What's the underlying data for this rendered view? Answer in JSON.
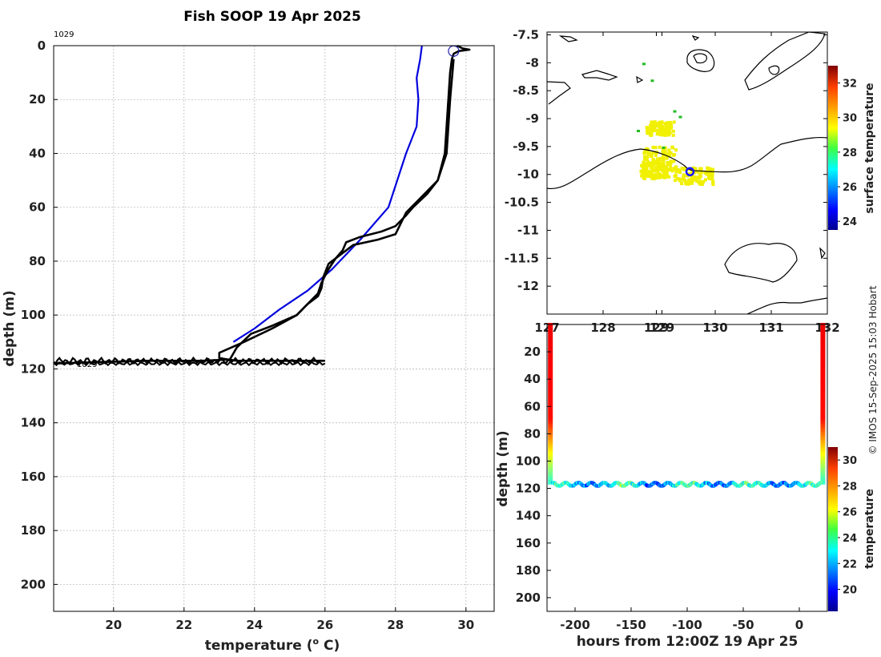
{
  "figure_title": "Fish SOOP 19 Apr 2025",
  "credit": "© IMOS 15-Sep-2025 15:03 Hobart",
  "colors": {
    "profile": "#000000",
    "climatology": "#0000dd",
    "marker": "#2222aa",
    "coast": "#000000",
    "sst_patch": "#f0f000",
    "sst_green": "#22bb22"
  },
  "chart_data": [
    {
      "id": "profile",
      "type": "line",
      "title": "Fish SOOP 19 Apr 2025",
      "xlabel": "temperature (",
      "xlabel_sup": "o",
      "xlabel_suffix": " C)",
      "ylabel": "depth (m)",
      "xlim": [
        18.3,
        30.8
      ],
      "ylim": [
        210,
        0
      ],
      "xticks": [
        "20",
        "22",
        "24",
        "26",
        "28",
        "30"
      ],
      "yticks": [
        "0",
        "20",
        "40",
        "60",
        "80",
        "100",
        "120",
        "140",
        "160",
        "180",
        "200"
      ],
      "grid": true,
      "annotations": [
        "1029",
        "1029"
      ],
      "series": [
        {
          "name": "climatology",
          "color": "#0000dd",
          "x": [
            28.75,
            28.7,
            28.6,
            28.65,
            28.6,
            28.3,
            27.8,
            27.0,
            26.2,
            25.5,
            24.7,
            24.0,
            23.4
          ],
          "y": [
            0,
            5,
            12,
            20,
            30,
            40,
            60,
            72,
            83,
            91,
            98,
            105,
            110
          ]
        },
        {
          "name": "profile-down",
          "color": "#000000",
          "x": [
            29.75,
            29.9,
            30.1,
            29.8,
            29.65,
            29.6,
            29.55,
            29.5,
            29.45,
            29.4,
            29.2,
            28.9,
            28.5,
            28.3,
            28.0,
            27.6,
            27.0,
            26.6,
            26.5,
            26.3,
            26.1,
            25.9,
            25.8,
            25.5,
            25.2,
            24.5,
            23.7,
            23.0,
            23.0,
            23.5,
            24.5,
            25.5,
            26.0
          ],
          "y": [
            0,
            1,
            1.5,
            2,
            3,
            5,
            10,
            20,
            30,
            40,
            50,
            55,
            60,
            63,
            67,
            69,
            71,
            73,
            76,
            79,
            83,
            88,
            92,
            96,
            100,
            105,
            110,
            114,
            116,
            117,
            117,
            117,
            117
          ]
        },
        {
          "name": "profile-up",
          "color": "#000000",
          "x": [
            18.3,
            19.5,
            21.0,
            22.5,
            23.3,
            23.5,
            23.9,
            24.5,
            25.2,
            25.5,
            25.8,
            25.9,
            25.95,
            26.1,
            26.4,
            26.8,
            27.5,
            28.0,
            28.3,
            28.6,
            29.2,
            29.45,
            29.5,
            29.55,
            29.65
          ],
          "y": [
            118,
            117.5,
            117,
            117,
            116.5,
            112,
            107,
            104,
            100,
            96,
            93,
            90,
            86,
            81,
            78,
            74,
            72,
            70,
            62,
            58,
            50,
            40,
            30,
            20,
            5
          ]
        }
      ],
      "marker": {
        "x": 29.65,
        "y": 2
      }
    },
    {
      "id": "map",
      "type": "heatmap",
      "xticks": [
        "127",
        "128",
        "129",
        "129",
        "130",
        "131",
        "132"
      ],
      "yticks": [
        "-7.5",
        "-8",
        "-8.5",
        "-9",
        "-9.5",
        "-10",
        "-10.5",
        "-11",
        "-11.5",
        "-12"
      ],
      "xlim": [
        127.0,
        132.0
      ],
      "ylim": [
        -12.5,
        -7.45
      ],
      "colorbar": {
        "label": "surface temperature",
        "ticks": [
          "24",
          "26",
          "28",
          "30",
          "32"
        ],
        "range": [
          23.5,
          33
        ]
      },
      "marker": {
        "lon": 129.55,
        "lat": -9.95
      }
    },
    {
      "id": "section",
      "type": "scatter",
      "xlabel": "hours from 12:00Z 19 Apr 25",
      "ylabel": "depth (m)",
      "xticks": [
        "-200",
        "-150",
        "-100",
        "-50",
        "0"
      ],
      "yticks": [
        "0",
        "20",
        "40",
        "60",
        "80",
        "100",
        "120",
        "140",
        "160",
        "180",
        "200"
      ],
      "xlim": [
        -225,
        25
      ],
      "ylim": [
        210,
        0
      ],
      "colorbar": {
        "label": "temperature",
        "ticks": [
          "20",
          "22",
          "24",
          "26",
          "28",
          "30"
        ],
        "range": [
          18.3,
          31
        ]
      }
    }
  ]
}
